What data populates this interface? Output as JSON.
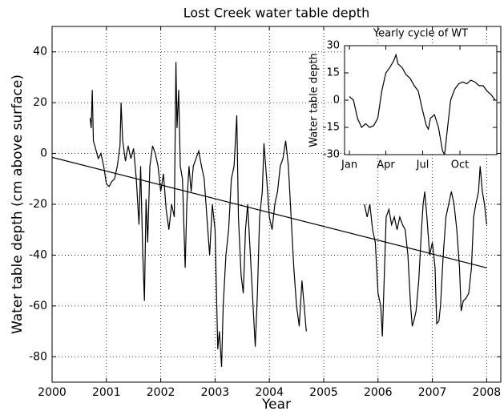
{
  "chart_data": [
    {
      "type": "line",
      "title": "Lost Creek water table depth",
      "x_label": "Year",
      "y_label": "Water table depth (cm above surface)",
      "xlim": [
        2000,
        2008.26
      ],
      "ylim": [
        -90,
        50
      ],
      "xticks": [
        2000,
        2001,
        2002,
        2003,
        2004,
        2005,
        2006,
        2007,
        2008
      ],
      "yticks": [
        -80,
        -60,
        -40,
        -20,
        0,
        20,
        40
      ],
      "grid": true,
      "series": [
        {
          "color": "#000000",
          "x": [
            2000.7,
            2000.72,
            2000.74,
            2000.76,
            2000.8,
            2000.85,
            2000.9,
            2000.95,
            2001.0,
            2001.05,
            2001.1,
            2001.15,
            2001.2,
            2001.25,
            2001.27,
            2001.3,
            2001.35,
            2001.4,
            2001.45,
            2001.5,
            2001.55,
            2001.6,
            2001.63,
            2001.67,
            2001.7,
            2001.73,
            2001.76,
            2001.8,
            2001.85,
            2001.9,
            2001.95,
            2002.0,
            2002.05,
            2002.1,
            2002.15,
            2002.2,
            2002.25,
            2002.28,
            2002.3,
            2002.33,
            2002.36,
            2002.4,
            2002.45,
            2002.48,
            2002.52,
            2002.56,
            2002.6,
            2002.65,
            2002.7,
            2002.75,
            2002.8,
            2002.85,
            2002.9,
            2002.95,
            2003.0,
            2003.05,
            2003.08,
            2003.12,
            2003.15,
            2003.2,
            2003.25,
            2003.3,
            2003.35,
            2003.4,
            2003.43,
            2003.48,
            2003.52,
            2003.56,
            2003.6,
            2003.65,
            2003.7,
            2003.74,
            2003.78,
            2003.82,
            2003.87,
            2003.9,
            2003.95,
            2004.0,
            2004.05,
            2004.1,
            2004.15,
            2004.2,
            2004.25,
            2004.3,
            2004.35,
            2004.4,
            2004.45,
            2004.5,
            2004.55,
            2004.6,
            2004.64,
            2004.68,
            2005.2,
            2005.75,
            2005.8,
            2005.85,
            2005.9,
            2005.95,
            2006.0,
            2006.05,
            2006.08,
            2006.12,
            2006.15,
            2006.2,
            2006.25,
            2006.3,
            2006.35,
            2006.4,
            2006.45,
            2006.5,
            2006.55,
            2006.6,
            2006.63,
            2006.67,
            2006.7,
            2006.75,
            2006.8,
            2006.83,
            2006.86,
            2006.9,
            2006.95,
            2007.0,
            2007.05,
            2007.08,
            2007.12,
            2007.15,
            2007.2,
            2007.25,
            2007.3,
            2007.35,
            2007.4,
            2007.45,
            2007.5,
            2007.53,
            2007.57,
            2007.62,
            2007.67,
            2007.72,
            2007.76,
            2007.8,
            2007.85,
            2007.88,
            2007.92,
            2007.96,
            2008.0
          ],
          "values": [
            14,
            10,
            25,
            5,
            2,
            -2,
            0,
            -5,
            -12,
            -13,
            -11,
            -10,
            -5,
            3,
            20,
            5,
            -3,
            3,
            -2,
            2,
            -10,
            -28,
            -5,
            -40,
            -58,
            -18,
            -35,
            -5,
            3,
            0,
            -5,
            -15,
            -8,
            -22,
            -30,
            -20,
            -25,
            36,
            10,
            25,
            -5,
            -10,
            -45,
            -20,
            -5,
            -15,
            -5,
            -2,
            1,
            -5,
            -10,
            -25,
            -40,
            -20,
            -30,
            -77,
            -70,
            -84,
            -60,
            -40,
            -30,
            -10,
            -5,
            15,
            -25,
            -48,
            -55,
            -30,
            -20,
            -40,
            -60,
            -76,
            -55,
            -25,
            -15,
            4,
            -10,
            -25,
            -30,
            -20,
            -15,
            -5,
            -2,
            5,
            -5,
            -25,
            -45,
            -60,
            -68,
            -50,
            -60,
            -70,
            null,
            -20,
            -25,
            -20,
            -30,
            -35,
            -55,
            -60,
            -72,
            -45,
            -25,
            -22,
            -28,
            -25,
            -30,
            -25,
            -28,
            -30,
            -40,
            -60,
            -68,
            -65,
            -62,
            -50,
            -30,
            -20,
            -15,
            -25,
            -40,
            -35,
            -45,
            -67,
            -66,
            -60,
            -40,
            -25,
            -20,
            -15,
            -20,
            -30,
            -45,
            -62,
            -58,
            -57,
            -55,
            -45,
            -25,
            -20,
            -15,
            -5,
            -15,
            -20,
            -28
          ]
        },
        {
          "color": "#000000",
          "x": [
            2000,
            2008
          ],
          "values": [
            -1.5,
            -45
          ]
        }
      ]
    },
    {
      "type": "line",
      "title": "Yearly cycle of WT",
      "y_label": "Water table depth",
      "xlim": [
        -12,
        364
      ],
      "ylim": [
        -30,
        30
      ],
      "xticks": [
        {
          "value": 0,
          "label": "Jan"
        },
        {
          "value": 90,
          "label": "Apr"
        },
        {
          "value": 181,
          "label": "Jul"
        },
        {
          "value": 273,
          "label": "Oct"
        }
      ],
      "yticks": [
        -30,
        -15,
        0,
        15,
        30
      ],
      "grid": false,
      "series": [
        {
          "color": "#000000",
          "x": [
            0,
            10,
            20,
            30,
            40,
            50,
            60,
            70,
            80,
            90,
            100,
            110,
            115,
            120,
            130,
            140,
            150,
            160,
            170,
            180,
            190,
            195,
            200,
            210,
            220,
            230,
            235,
            240,
            250,
            260,
            270,
            280,
            290,
            300,
            310,
            320,
            330,
            340,
            350,
            360
          ],
          "values": [
            2,
            0,
            -10,
            -15,
            -13,
            -15,
            -14,
            -10,
            5,
            15,
            18,
            22,
            25,
            20,
            18,
            14,
            12,
            8,
            5,
            -5,
            -14,
            -16,
            -10,
            -8,
            -15,
            -28,
            -30,
            -20,
            0,
            6,
            9,
            10,
            9,
            11,
            10,
            8,
            8,
            5,
            3,
            0
          ]
        }
      ]
    }
  ]
}
